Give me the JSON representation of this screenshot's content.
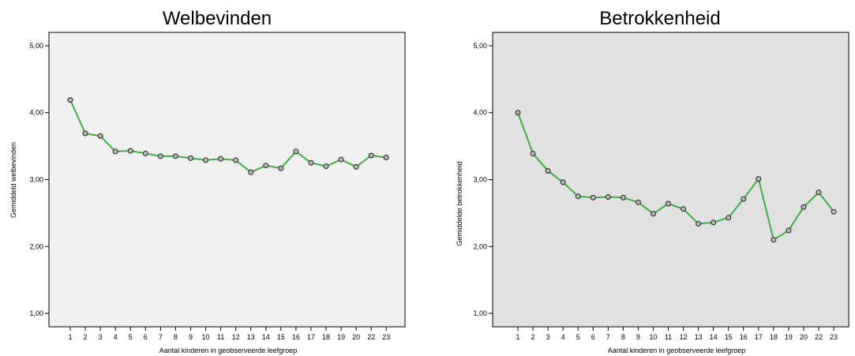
{
  "chart_data": [
    {
      "type": "line",
      "title": "Welbevinden",
      "xlabel": "Aantal kinderen in geobserveerde leefgroep",
      "ylabel": "Gemiddeld welbevinden",
      "ylim": [
        0.8,
        5.2
      ],
      "yticks": [
        "1,00",
        "2,00",
        "3,00",
        "4,00",
        "5,00"
      ],
      "categories": [
        "1",
        "2",
        "3",
        "4",
        "5",
        "6",
        "7",
        "8",
        "9",
        "10",
        "11",
        "12",
        "13",
        "14",
        "15",
        "16",
        "17",
        "18",
        "19",
        "20",
        "22",
        "23"
      ],
      "values": [
        4.19,
        3.69,
        3.65,
        3.42,
        3.43,
        3.39,
        3.35,
        3.35,
        3.32,
        3.29,
        3.31,
        3.29,
        3.11,
        3.21,
        3.17,
        3.42,
        3.25,
        3.2,
        3.3,
        3.19,
        3.36,
        3.33
      ],
      "plot_background": "#f0f0f0",
      "line_color": "#3cb043",
      "grid": false
    },
    {
      "type": "line",
      "title": "Betrokkenheid",
      "xlabel": "Aantal kinderen in geobserveerde leefgroep",
      "ylabel": "Gemiddelde betrokkenheid",
      "ylim": [
        0.8,
        5.2
      ],
      "yticks": [
        "1,00",
        "2,00",
        "3,00",
        "4,00",
        "5,00"
      ],
      "categories": [
        "1",
        "2",
        "3",
        "4",
        "5",
        "6",
        "7",
        "8",
        "9",
        "10",
        "11",
        "12",
        "13",
        "14",
        "15",
        "16",
        "17",
        "18",
        "19",
        "20",
        "22",
        "23"
      ],
      "values": [
        4.0,
        3.39,
        3.13,
        2.96,
        2.75,
        2.73,
        2.74,
        2.73,
        2.66,
        2.49,
        2.64,
        2.56,
        2.34,
        2.36,
        2.43,
        2.71,
        3.01,
        2.1,
        2.24,
        2.59,
        2.81,
        2.52
      ],
      "plot_background": "#e1e1e1",
      "line_color": "#3cb043",
      "grid": false
    }
  ]
}
